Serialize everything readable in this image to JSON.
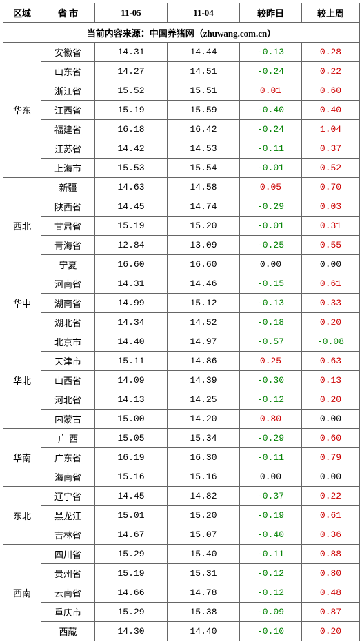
{
  "headers": {
    "region": "区域",
    "province": "省 市",
    "date1": "11-05",
    "date2": "11-04",
    "vs_yesterday": "较昨日",
    "vs_lastweek": "较上周"
  },
  "source_line": "当前内容来源：中国养猪网（zhuwang.com.cn）",
  "colors": {
    "neg": "#008000",
    "pos": "#cc0000",
    "zero": "#000000",
    "border": "#666666",
    "bg": "#ffffff"
  },
  "regions": [
    {
      "name": "华东",
      "rows": [
        {
          "prov": "安徽省",
          "d1": "14.31",
          "d2": "14.44",
          "dy": "-0.13",
          "dw": "0.28"
        },
        {
          "prov": "山东省",
          "d1": "14.27",
          "d2": "14.51",
          "dy": "-0.24",
          "dw": "0.22"
        },
        {
          "prov": "浙江省",
          "d1": "15.52",
          "d2": "15.51",
          "dy": "0.01",
          "dw": "0.60"
        },
        {
          "prov": "江西省",
          "d1": "15.19",
          "d2": "15.59",
          "dy": "-0.40",
          "dw": "0.40"
        },
        {
          "prov": "福建省",
          "d1": "16.18",
          "d2": "16.42",
          "dy": "-0.24",
          "dw": "1.04"
        },
        {
          "prov": "江苏省",
          "d1": "14.42",
          "d2": "14.53",
          "dy": "-0.11",
          "dw": "0.37"
        },
        {
          "prov": "上海市",
          "d1": "15.53",
          "d2": "15.54",
          "dy": "-0.01",
          "dw": "0.52"
        }
      ]
    },
    {
      "name": "西北",
      "rows": [
        {
          "prov": "新疆",
          "d1": "14.63",
          "d2": "14.58",
          "dy": "0.05",
          "dw": "0.70"
        },
        {
          "prov": "陕西省",
          "d1": "14.45",
          "d2": "14.74",
          "dy": "-0.29",
          "dw": "0.03"
        },
        {
          "prov": "甘肃省",
          "d1": "15.19",
          "d2": "15.20",
          "dy": "-0.01",
          "dw": "0.31"
        },
        {
          "prov": "青海省",
          "d1": "12.84",
          "d2": "13.09",
          "dy": "-0.25",
          "dw": "0.55"
        },
        {
          "prov": "宁夏",
          "d1": "16.60",
          "d2": "16.60",
          "dy": "0.00",
          "dw": "0.00"
        }
      ]
    },
    {
      "name": "华中",
      "rows": [
        {
          "prov": "河南省",
          "d1": "14.31",
          "d2": "14.46",
          "dy": "-0.15",
          "dw": "0.61"
        },
        {
          "prov": "湖南省",
          "d1": "14.99",
          "d2": "15.12",
          "dy": "-0.13",
          "dw": "0.33"
        },
        {
          "prov": "湖北省",
          "d1": "14.34",
          "d2": "14.52",
          "dy": "-0.18",
          "dw": "0.20"
        }
      ]
    },
    {
      "name": "华北",
      "rows": [
        {
          "prov": "北京市",
          "d1": "14.40",
          "d2": "14.97",
          "dy": "-0.57",
          "dw": "-0.08"
        },
        {
          "prov": "天津市",
          "d1": "15.11",
          "d2": "14.86",
          "dy": "0.25",
          "dw": "0.63"
        },
        {
          "prov": "山西省",
          "d1": "14.09",
          "d2": "14.39",
          "dy": "-0.30",
          "dw": "0.13"
        },
        {
          "prov": "河北省",
          "d1": "14.13",
          "d2": "14.25",
          "dy": "-0.12",
          "dw": "0.20"
        },
        {
          "prov": "内蒙古",
          "d1": "15.00",
          "d2": "14.20",
          "dy": "0.80",
          "dw": "0.00"
        }
      ]
    },
    {
      "name": "华南",
      "rows": [
        {
          "prov": "广 西",
          "d1": "15.05",
          "d2": "15.34",
          "dy": "-0.29",
          "dw": "0.60"
        },
        {
          "prov": "广东省",
          "d1": "16.19",
          "d2": "16.30",
          "dy": "-0.11",
          "dw": "0.79"
        },
        {
          "prov": "海南省",
          "d1": "15.16",
          "d2": "15.16",
          "dy": "0.00",
          "dw": "0.00"
        }
      ]
    },
    {
      "name": "东北",
      "rows": [
        {
          "prov": "辽宁省",
          "d1": "14.45",
          "d2": "14.82",
          "dy": "-0.37",
          "dw": "0.22"
        },
        {
          "prov": "黑龙江",
          "d1": "15.01",
          "d2": "15.20",
          "dy": "-0.19",
          "dw": "0.61"
        },
        {
          "prov": "吉林省",
          "d1": "14.67",
          "d2": "15.07",
          "dy": "-0.40",
          "dw": "0.36"
        }
      ]
    },
    {
      "name": "西南",
      "rows": [
        {
          "prov": "四川省",
          "d1": "15.29",
          "d2": "15.40",
          "dy": "-0.11",
          "dw": "0.88"
        },
        {
          "prov": "贵州省",
          "d1": "15.19",
          "d2": "15.31",
          "dy": "-0.12",
          "dw": "0.80"
        },
        {
          "prov": "云南省",
          "d1": "14.66",
          "d2": "14.78",
          "dy": "-0.12",
          "dw": "0.48"
        },
        {
          "prov": "重庆市",
          "d1": "15.29",
          "d2": "15.38",
          "dy": "-0.09",
          "dw": "0.87"
        },
        {
          "prov": "西藏",
          "d1": "14.30",
          "d2": "14.40",
          "dy": "-0.10",
          "dw": "0.20"
        }
      ]
    }
  ]
}
